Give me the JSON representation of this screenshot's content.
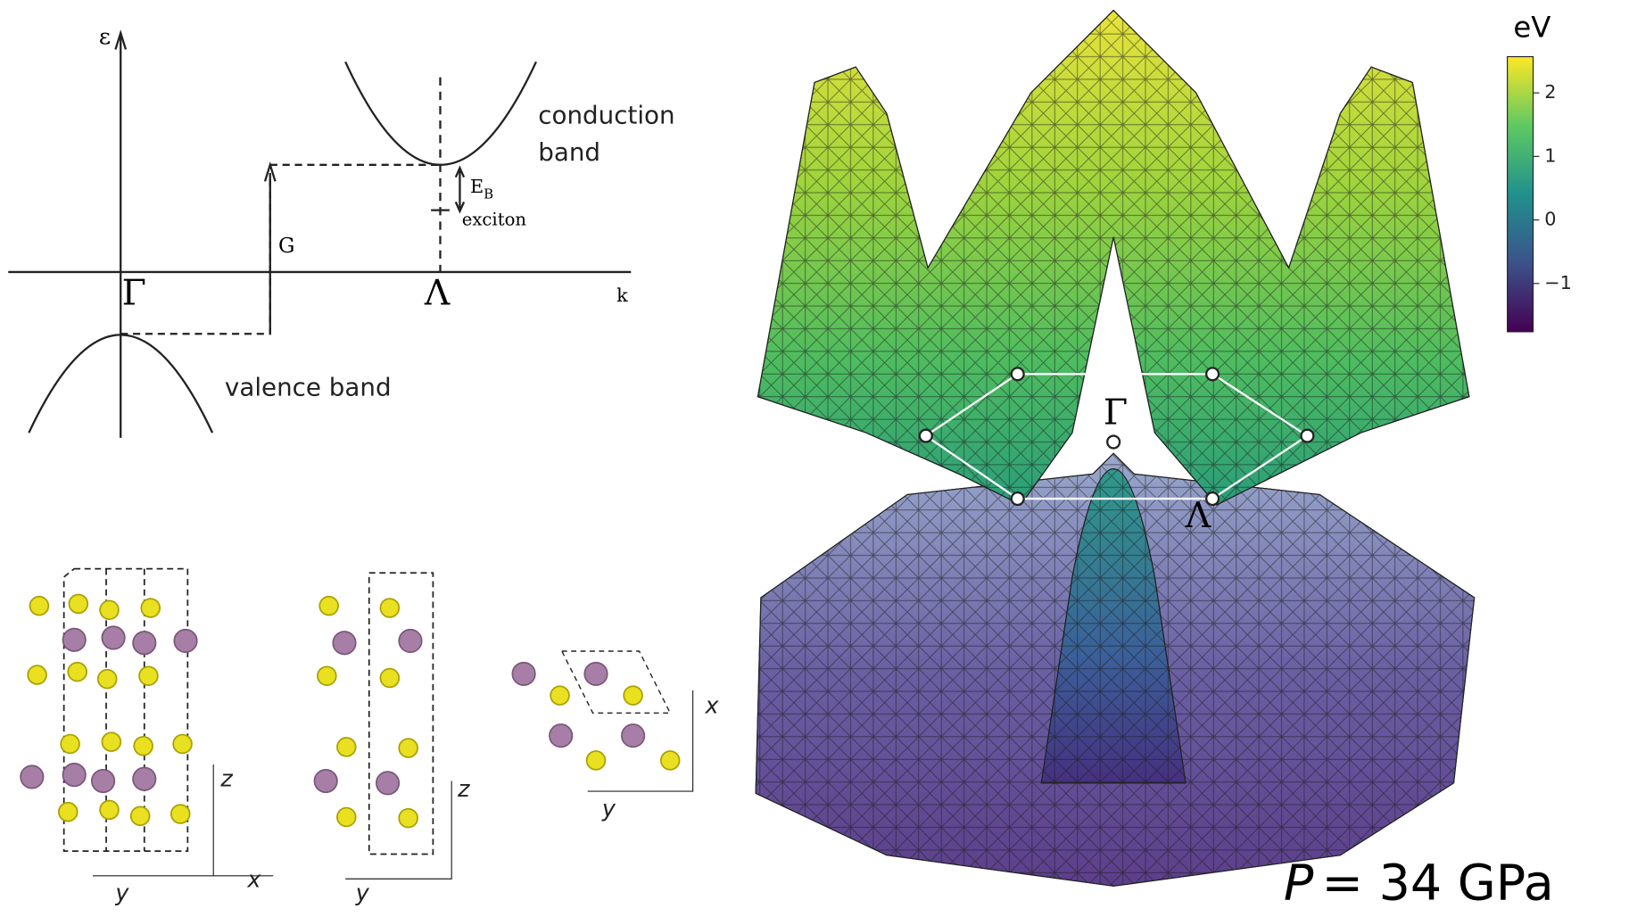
{
  "band_diagram": {
    "energy_axis": "ε",
    "k_axis": "k",
    "gamma": "Γ",
    "lambda": "Λ",
    "gap": "G",
    "conduction": [
      "conduction",
      "band"
    ],
    "valence": "valence band",
    "binding_energy": "E",
    "binding_energy_sub": "B",
    "exciton": "exciton"
  },
  "structures": {
    "side_1": {
      "z": "z",
      "y": "y",
      "x": "x"
    },
    "side_2": {
      "z": "z",
      "y": "y"
    },
    "top": {
      "x": "x",
      "y": "y"
    }
  },
  "surface": {
    "gamma": "Γ",
    "lambda": "Λ"
  },
  "colorbar": {
    "label": "eV",
    "lim": [
      -1.76,
      2.57
    ],
    "ticks": [
      {
        "value": -1,
        "label": "−1"
      },
      0,
      1,
      2
    ]
  },
  "pressure": {
    "symbol": "P",
    "text": "= 34 GPa"
  }
}
